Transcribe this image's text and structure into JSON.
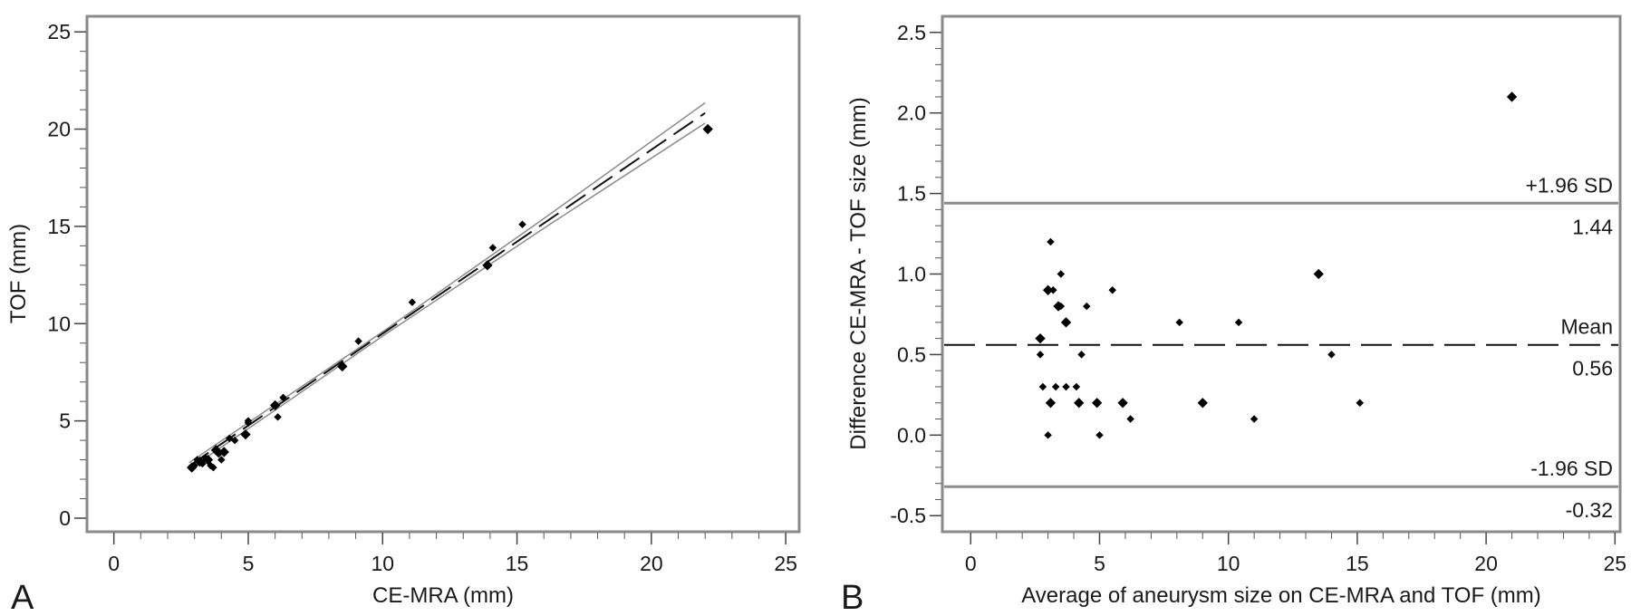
{
  "chart_data": [
    {
      "panel": "A",
      "type": "scatter",
      "title": "",
      "xlabel": "CE-MRA (mm)",
      "ylabel": "TOF (mm)",
      "xlim": [
        -1,
        25.5
      ],
      "ylim": [
        -0.7,
        25.8
      ],
      "xticks": [
        0,
        5,
        10,
        15,
        20,
        25
      ],
      "xtick_labels": [
        "0",
        "5",
        "10",
        "15",
        "20",
        "25"
      ],
      "yticks": [
        0,
        5,
        10,
        15,
        20,
        25
      ],
      "ytick_labels": [
        "0",
        "5",
        "10",
        "15",
        "20",
        "25"
      ],
      "grid": false,
      "points": [
        [
          2.9,
          2.6
        ],
        [
          3.0,
          2.7
        ],
        [
          3.1,
          3.0
        ],
        [
          3.2,
          2.9
        ],
        [
          3.3,
          2.8
        ],
        [
          3.4,
          3.1
        ],
        [
          3.5,
          3.0
        ],
        [
          3.6,
          2.7
        ],
        [
          3.7,
          2.6
        ],
        [
          3.8,
          3.5
        ],
        [
          3.9,
          3.3
        ],
        [
          4.0,
          3.0
        ],
        [
          4.1,
          3.4
        ],
        [
          4.3,
          4.1
        ],
        [
          4.5,
          4.0
        ],
        [
          4.9,
          4.3
        ],
        [
          5.0,
          4.9
        ],
        [
          5.0,
          5.0
        ],
        [
          6.0,
          5.8
        ],
        [
          6.1,
          5.2
        ],
        [
          6.3,
          6.2
        ],
        [
          8.5,
          7.8
        ],
        [
          9.1,
          9.1
        ],
        [
          11.1,
          11.1
        ],
        [
          13.9,
          13.0
        ],
        [
          14.1,
          13.9
        ],
        [
          15.2,
          15.1
        ],
        [
          22.1,
          20.0
        ]
      ],
      "regression_line": {
        "x": [
          2.8,
          22.0
        ],
        "y": [
          2.68,
          20.83
        ]
      },
      "ci_upper": {
        "x": [
          2.8,
          10.0,
          16.0,
          22.0
        ],
        "y": [
          2.85,
          9.58,
          15.4,
          21.35
        ]
      },
      "ci_lower": {
        "x": [
          2.8,
          10.0,
          16.0,
          22.0
        ],
        "y": [
          2.51,
          9.36,
          14.9,
          20.31
        ]
      }
    },
    {
      "panel": "B",
      "type": "scatter",
      "title": "",
      "xlabel": "Average of aneurysm size on CE-MRA and TOF (mm)",
      "ylabel": "Difference CE-MRA - TOF size (mm)",
      "xlim": [
        -1.1,
        25.2
      ],
      "ylim": [
        -0.6,
        2.6
      ],
      "xticks": [
        0,
        5,
        10,
        15,
        20,
        25
      ],
      "xtick_labels": [
        "0",
        "5",
        "10",
        "15",
        "20",
        "25"
      ],
      "yticks": [
        -0.5,
        0.0,
        0.5,
        1.0,
        1.5,
        2.0,
        2.5
      ],
      "ytick_labels": [
        "-0.5",
        "0.0",
        "0.5",
        "1.0",
        "1.5",
        "2.0",
        "2.5"
      ],
      "grid": false,
      "points": [
        [
          2.7,
          0.6
        ],
        [
          2.7,
          0.5
        ],
        [
          2.8,
          0.3
        ],
        [
          3.0,
          0.9
        ],
        [
          3.0,
          0.0
        ],
        [
          3.1,
          1.2
        ],
        [
          3.1,
          0.2
        ],
        [
          3.2,
          0.9
        ],
        [
          3.3,
          0.3
        ],
        [
          3.4,
          0.8
        ],
        [
          3.5,
          1.0
        ],
        [
          3.5,
          0.8
        ],
        [
          3.7,
          0.7
        ],
        [
          3.7,
          0.3
        ],
        [
          4.1,
          0.3
        ],
        [
          4.2,
          0.2
        ],
        [
          4.3,
          0.5
        ],
        [
          4.5,
          0.8
        ],
        [
          4.9,
          0.2
        ],
        [
          5.0,
          0.0
        ],
        [
          5.5,
          0.9
        ],
        [
          5.9,
          0.2
        ],
        [
          6.2,
          0.1
        ],
        [
          8.1,
          0.7
        ],
        [
          9.0,
          0.2
        ],
        [
          10.4,
          0.7
        ],
        [
          11.0,
          0.1
        ],
        [
          13.5,
          1.0
        ],
        [
          14.0,
          0.5
        ],
        [
          15.1,
          0.2
        ],
        [
          21.0,
          2.1
        ]
      ],
      "reference_lines": [
        {
          "label": "+1.96 SD",
          "value_label": "1.44",
          "y": 1.44,
          "style": "solid"
        },
        {
          "label": "Mean",
          "value_label": "0.56",
          "y": 0.56,
          "style": "dashed"
        },
        {
          "label": "-1.96 SD",
          "value_label": "-0.32",
          "y": -0.32,
          "style": "solid"
        }
      ]
    }
  ]
}
